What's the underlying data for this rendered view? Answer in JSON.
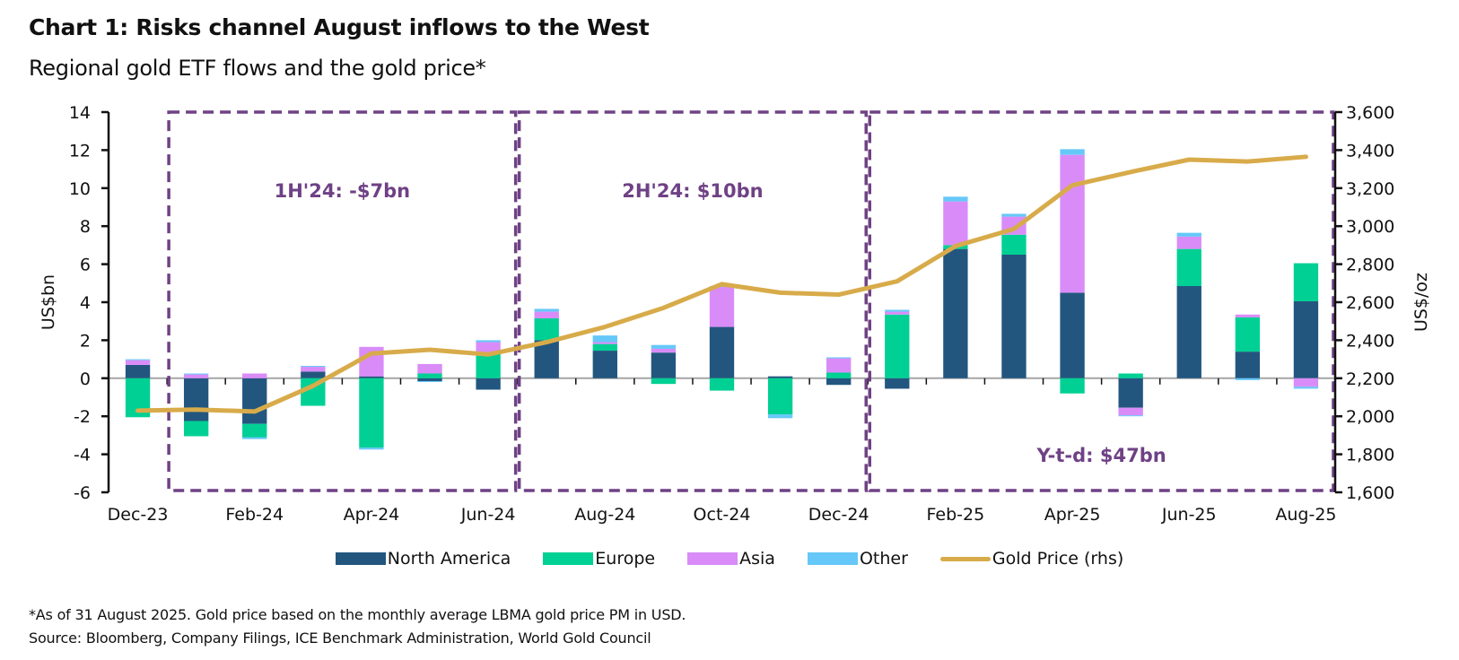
{
  "header": {
    "title": "Chart 1: Risks channel August inflows to the West",
    "subtitle": "Regional gold ETF flows and the gold price*"
  },
  "footnotes": {
    "note": "*As of 31 August 2025. Gold price based on the monthly average LBMA gold price PM in USD.",
    "source": "Source: Bloomberg, Company Filings, ICE Benchmark Administration, World Gold Council"
  },
  "colors": {
    "north_america": "#22567f",
    "europe": "#00d094",
    "asia": "#d98cf8",
    "other": "#66c8f8",
    "gold_price": "#d8ab4a",
    "annotation": "#6f4185",
    "axis": "#111111",
    "zero_line": "#a6a6a6"
  },
  "chart_data": {
    "type": "bar",
    "subtype": "stacked bar with line overlay (dual axis)",
    "title": "Chart 1: Risks channel August inflows to the West",
    "subtitle": "Regional gold ETF flows and the gold price*",
    "categories": [
      "Dec-23",
      "Jan-24",
      "Feb-24",
      "Mar-24",
      "Apr-24",
      "May-24",
      "Jun-24",
      "Jul-24",
      "Aug-24",
      "Sep-24",
      "Oct-24",
      "Nov-24",
      "Dec-24",
      "Jan-25",
      "Feb-25",
      "Mar-25",
      "Apr-25",
      "May-25",
      "Jun-25",
      "Jul-25",
      "Aug-25"
    ],
    "x_tick_labels": [
      "Dec-23",
      "Feb-24",
      "Apr-24",
      "Jun-24",
      "Aug-24",
      "Oct-24",
      "Dec-24",
      "Feb-25",
      "Apr-25",
      "Jun-25",
      "Aug-25"
    ],
    "ylabel": "US$bn",
    "ylim": [
      -6,
      14
    ],
    "yticks": [
      -6,
      -4,
      -2,
      0,
      2,
      4,
      6,
      8,
      10,
      12,
      14
    ],
    "y2label": "US$/oz",
    "y2lim": [
      1600,
      3600
    ],
    "y2ticks": [
      1600,
      1800,
      2000,
      2200,
      2400,
      2600,
      2800,
      3000,
      3200,
      3400,
      3600
    ],
    "y2tick_labels": [
      "1,600",
      "1,800",
      "2,000",
      "2,200",
      "2,400",
      "2,600",
      "2,800",
      "3,000",
      "3,200",
      "3,400",
      "3,600"
    ],
    "grid": false,
    "legend_position": "bottom-center",
    "series": [
      {
        "name": "North America",
        "key": "north_america",
        "type": "bar",
        "values": [
          0.7,
          -2.25,
          -2.4,
          0.35,
          0.1,
          -0.15,
          -0.6,
          2.0,
          1.45,
          1.35,
          2.7,
          0.1,
          -0.35,
          -0.55,
          6.8,
          6.5,
          4.5,
          -1.55,
          4.85,
          1.4,
          4.05
        ]
      },
      {
        "name": "Europe",
        "key": "europe",
        "type": "bar",
        "values": [
          -2.05,
          -0.8,
          -0.7,
          -1.45,
          -3.65,
          0.25,
          1.35,
          1.15,
          0.35,
          -0.3,
          -0.65,
          -1.9,
          0.3,
          3.35,
          0.2,
          1.05,
          -0.8,
          0.25,
          1.95,
          1.8,
          2.0
        ]
      },
      {
        "name": "Asia",
        "key": "asia",
        "type": "bar",
        "values": [
          0.25,
          0.2,
          0.25,
          0.25,
          1.55,
          0.5,
          0.55,
          0.35,
          0.1,
          0.2,
          2.1,
          0.0,
          0.75,
          0.15,
          2.3,
          0.95,
          7.25,
          -0.4,
          0.65,
          0.15,
          -0.45
        ]
      },
      {
        "name": "Other",
        "key": "other",
        "type": "bar",
        "values": [
          0.05,
          0.05,
          -0.1,
          0.05,
          -0.1,
          -0.05,
          0.1,
          0.15,
          0.35,
          0.2,
          0.05,
          -0.2,
          0.05,
          0.1,
          0.25,
          0.15,
          0.3,
          -0.05,
          0.2,
          -0.1,
          -0.1
        ]
      },
      {
        "name": "Gold Price (rhs)",
        "key": "gold_price",
        "type": "line",
        "axis": "right",
        "values": [
          2030,
          2035,
          2025,
          2160,
          2330,
          2350,
          2325,
          2390,
          2470,
          2570,
          2695,
          2650,
          2640,
          2710,
          2895,
          2985,
          3215,
          3285,
          3350,
          3340,
          3365
        ]
      }
    ],
    "annotations": [
      {
        "text": "1H'24: -$7bn",
        "period": [
          "Jan-24",
          "Jun-24"
        ],
        "label_position": "top"
      },
      {
        "text": "2H'24: $10bn",
        "period": [
          "Jul-24",
          "Dec-24"
        ],
        "label_position": "top"
      },
      {
        "text": "Y-t-d: $47bn",
        "period": [
          "Jan-25",
          "Aug-25"
        ],
        "label_position": "bottom"
      }
    ]
  }
}
